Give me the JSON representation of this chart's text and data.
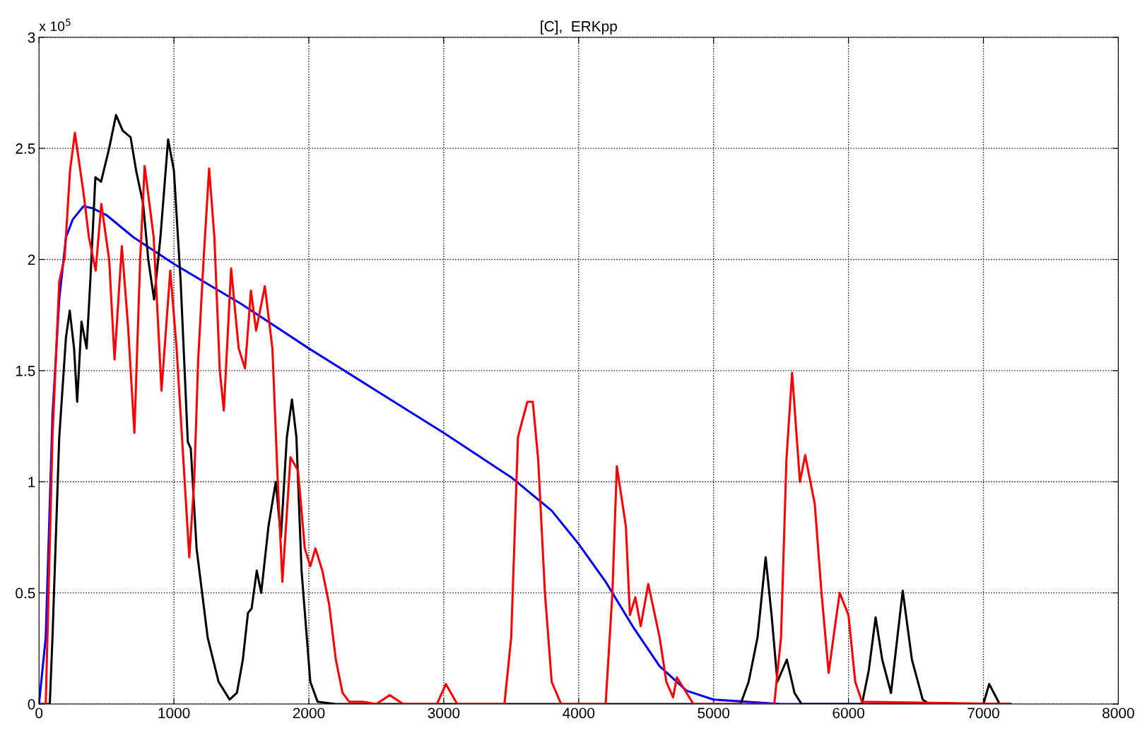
{
  "chart_data": {
    "type": "line",
    "title": "[C],  ERKpp",
    "annotations": [
      "x 10$^{5}$"
    ],
    "xlim": [
      0,
      8000
    ],
    "xticks": [
      0,
      1000,
      2000,
      3000,
      4000,
      5000,
      6000,
      7000,
      8000
    ],
    "ylim": [
      0,
      3
    ],
    "yticks": [
      0,
      0.5,
      1,
      1.5,
      2,
      2.5,
      3
    ],
    "grid": true,
    "line_style": "solid",
    "marker": "none",
    "series": [
      {
        "color": "#0000ff",
        "x": [
          0,
          50,
          100,
          150,
          200,
          250,
          330,
          400,
          500,
          700,
          1000,
          1500,
          2000,
          2500,
          3000,
          3500,
          3800,
          4000,
          4200,
          4400,
          4600,
          4800,
          5000,
          5500,
          7200
        ],
        "values": [
          0,
          0.3,
          1.3,
          1.82,
          2.1,
          2.18,
          2.24,
          2.23,
          2.2,
          2.1,
          1.98,
          1.8,
          1.6,
          1.41,
          1.22,
          1.02,
          0.87,
          0.72,
          0.55,
          0.35,
          0.17,
          0.06,
          0.02,
          0,
          0
        ]
      },
      {
        "color": "#000000",
        "x": [
          0,
          80,
          100,
          150,
          200,
          228,
          260,
          283,
          315,
          353,
          380,
          418,
          460,
          520,
          571,
          620,
          679,
          720,
          772,
          810,
          853,
          900,
          957,
          1000,
          1050,
          1103,
          1125,
          1168,
          1250,
          1331,
          1413,
          1467,
          1511,
          1549,
          1576,
          1614,
          1647,
          1701,
          1755,
          1793,
          1837,
          1875,
          1908,
          1946,
          2011,
          2065,
          2200,
          5200,
          5260,
          5326,
          5386,
          5430,
          5473,
          5543,
          5600,
          5652,
          6100,
          6150,
          6201,
          6250,
          6315,
          6402,
          6470,
          6550,
          6600,
          7000,
          7043,
          7120,
          7200
        ],
        "values": [
          0,
          0,
          0.3,
          1.2,
          1.65,
          1.77,
          1.6,
          1.36,
          1.72,
          1.6,
          1.9,
          2.37,
          2.35,
          2.5,
          2.65,
          2.58,
          2.55,
          2.4,
          2.25,
          2.0,
          1.82,
          2.1,
          2.54,
          2.4,
          1.9,
          1.18,
          1.15,
          0.7,
          0.3,
          0.1,
          0.02,
          0.05,
          0.2,
          0.41,
          0.43,
          0.6,
          0.5,
          0.8,
          1.0,
          0.75,
          1.2,
          1.37,
          1.2,
          0.6,
          0.1,
          0.01,
          0,
          0,
          0.1,
          0.3,
          0.66,
          0.4,
          0.1,
          0.2,
          0.05,
          0,
          0,
          0.15,
          0.39,
          0.2,
          0.05,
          0.51,
          0.2,
          0.02,
          0,
          0,
          0.09,
          0,
          0
        ]
      },
      {
        "color": "#ff0000",
        "x": [
          0,
          50,
          100,
          150,
          190,
          230,
          266,
          330,
          370,
          420,
          462,
          520,
          560,
          614,
          660,
          707,
          750,
          783,
          850,
          908,
          973,
          1020,
          1080,
          1114,
          1150,
          1180,
          1220,
          1261,
          1300,
          1340,
          1370,
          1424,
          1480,
          1527,
          1571,
          1609,
          1674,
          1730,
          1770,
          1804,
          1864,
          1920,
          1970,
          2011,
          2049,
          2100,
          2150,
          2200,
          2250,
          2300,
          2400,
          2500,
          2600,
          2700,
          2950,
          3016,
          3100,
          3450,
          3500,
          3550,
          3580,
          3620,
          3660,
          3700,
          3750,
          3800,
          3870,
          4200,
          4250,
          4283,
          4350,
          4380,
          4420,
          4460,
          4516,
          4600,
          4650,
          4700,
          4728,
          4800,
          4850,
          5450,
          5500,
          5540,
          5582,
          5640,
          5679,
          5750,
          5800,
          5853,
          5900,
          5935,
          6000,
          6050,
          6100,
          7200
        ],
        "values": [
          0,
          0,
          1.2,
          1.9,
          2.01,
          2.4,
          2.57,
          2.3,
          2.1,
          1.95,
          2.25,
          2.0,
          1.55,
          2.06,
          1.7,
          1.22,
          2.0,
          2.42,
          2.1,
          1.41,
          1.95,
          1.6,
          1.0,
          0.66,
          1.0,
          1.55,
          2.0,
          2.41,
          2.1,
          1.5,
          1.32,
          1.96,
          1.6,
          1.51,
          1.86,
          1.68,
          1.88,
          1.6,
          1.0,
          0.55,
          1.11,
          1.05,
          0.7,
          0.62,
          0.7,
          0.6,
          0.45,
          0.2,
          0.05,
          0.01,
          0.01,
          0,
          0.04,
          0,
          0,
          0.09,
          0,
          0,
          0.3,
          1.2,
          1.27,
          1.36,
          1.36,
          1.1,
          0.5,
          0.1,
          0,
          0,
          0.5,
          1.07,
          0.8,
          0.4,
          0.48,
          0.35,
          0.54,
          0.3,
          0.1,
          0.03,
          0.12,
          0.05,
          0,
          0,
          0.3,
          1.1,
          1.49,
          1.0,
          1.12,
          0.9,
          0.5,
          0.14,
          0.35,
          0.5,
          0.4,
          0.1,
          0.01,
          0
        ]
      }
    ]
  }
}
